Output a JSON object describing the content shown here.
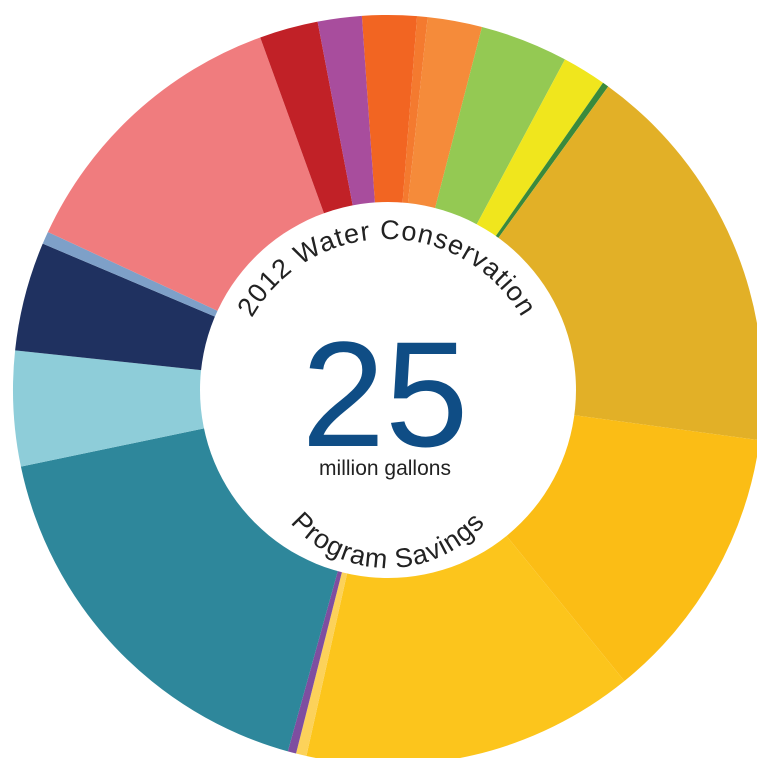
{
  "chart_data": {
    "type": "pie",
    "style": "donut",
    "center_title_top": "2012 Water Conservation",
    "center_title_bottom": "Program Savings",
    "center_value": "25",
    "center_unit": "million gallons",
    "slices": [
      {
        "value": 2.6,
        "color": "#f26522"
      },
      {
        "value": 0.5,
        "color": "#f47a2f"
      },
      {
        "value": 2.6,
        "color": "#f58b3a"
      },
      {
        "value": 4.2,
        "color": "#94c953"
      },
      {
        "value": 2.1,
        "color": "#f0e61d"
      },
      {
        "value": 0.3,
        "color": "#3a8a3c"
      },
      {
        "value": 19.0,
        "color": "#e2b027"
      },
      {
        "value": 13.3,
        "color": "#fbbd15"
      },
      {
        "value": 15.9,
        "color": "#fcc51c"
      },
      {
        "value": 0.5,
        "color": "#fcd25a"
      },
      {
        "value": 0.4,
        "color": "#7e4ea0"
      },
      {
        "value": 19.3,
        "color": "#2e879b"
      },
      {
        "value": 5.5,
        "color": "#8ecdd9"
      },
      {
        "value": 5.2,
        "color": "#1f3160"
      },
      {
        "value": 0.6,
        "color": "#7ea0c8"
      },
      {
        "value": 13.9,
        "color": "#f07c7e"
      },
      {
        "value": 2.8,
        "color": "#c12127"
      },
      {
        "value": 2.1,
        "color": "#a84d9d"
      }
    ]
  }
}
